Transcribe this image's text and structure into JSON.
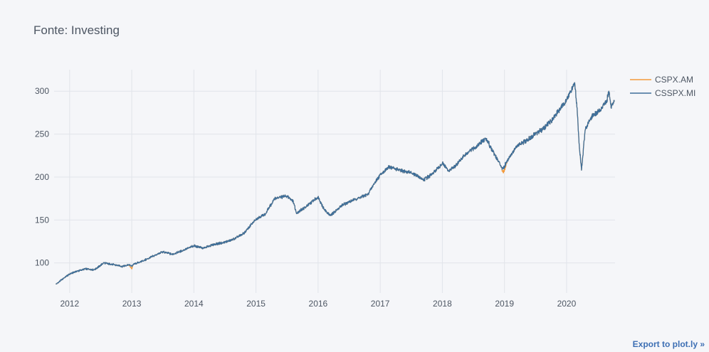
{
  "chart_data": {
    "type": "line",
    "title": "Fonte: Investing",
    "xlabel": "",
    "ylabel": "",
    "xlim": [
      2011.75,
      2020.78
    ],
    "ylim": [
      65,
      325
    ],
    "x_ticks": [
      2012,
      2013,
      2014,
      2015,
      2016,
      2017,
      2018,
      2019,
      2020
    ],
    "x_tick_labels": [
      "2012",
      "2013",
      "2014",
      "2015",
      "2016",
      "2017",
      "2018",
      "2019",
      "2020"
    ],
    "y_ticks": [
      100,
      150,
      200,
      250,
      300
    ],
    "y_tick_labels": [
      "100",
      "150",
      "200",
      "250",
      "300"
    ],
    "grid": true,
    "legend_position": "top-right",
    "series": [
      {
        "name": "CSPX.AM",
        "color": "#f39a3b",
        "x": [
          2011.78,
          2011.9,
          2012.0,
          2012.1,
          2012.25,
          2012.4,
          2012.55,
          2012.7,
          2012.85,
          2012.95,
          2013.0,
          2013.02,
          2013.2,
          2013.35,
          2013.5,
          2013.65,
          2013.8,
          2014.0,
          2014.15,
          2014.3,
          2014.5,
          2014.65,
          2014.8,
          2015.0,
          2015.15,
          2015.3,
          2015.5,
          2015.6,
          2015.65,
          2015.8,
          2016.0,
          2016.1,
          2016.2,
          2016.4,
          2016.6,
          2016.8,
          2016.9,
          2017.0,
          2017.15,
          2017.3,
          2017.5,
          2017.7,
          2017.85,
          2018.0,
          2018.1,
          2018.2,
          2018.35,
          2018.5,
          2018.7,
          2018.8,
          2018.95,
          2018.98,
          2019.05,
          2019.2,
          2019.35,
          2019.5,
          2019.6,
          2019.75,
          2019.9,
          2020.0,
          2020.13,
          2020.17,
          2020.2,
          2020.24,
          2020.3,
          2020.4,
          2020.55,
          2020.65,
          2020.68,
          2020.72,
          2020.77
        ],
        "values": [
          75,
          82,
          87,
          90,
          93,
          92,
          100,
          98,
          96,
          98,
          93,
          98,
          103,
          108,
          113,
          110,
          114,
          120,
          117,
          121,
          124,
          128,
          134,
          151,
          157,
          175,
          178,
          172,
          158,
          165,
          177,
          162,
          155,
          168,
          174,
          180,
          192,
          203,
          212,
          208,
          205,
          197,
          204,
          216,
          207,
          212,
          225,
          233,
          245,
          232,
          212,
          205,
          220,
          236,
          242,
          250,
          255,
          265,
          280,
          290,
          310,
          280,
          240,
          208,
          255,
          270,
          278,
          290,
          300,
          280,
          288
        ]
      },
      {
        "name": "CSSPX.MI",
        "color": "#3e6f9b",
        "x": [
          2011.78,
          2011.9,
          2012.0,
          2012.1,
          2012.25,
          2012.4,
          2012.55,
          2012.7,
          2012.85,
          2012.95,
          2013.0,
          2013.02,
          2013.2,
          2013.35,
          2013.5,
          2013.65,
          2013.8,
          2014.0,
          2014.15,
          2014.3,
          2014.5,
          2014.65,
          2014.8,
          2015.0,
          2015.15,
          2015.3,
          2015.5,
          2015.6,
          2015.65,
          2015.8,
          2016.0,
          2016.1,
          2016.2,
          2016.4,
          2016.6,
          2016.8,
          2016.9,
          2017.0,
          2017.15,
          2017.3,
          2017.5,
          2017.7,
          2017.85,
          2018.0,
          2018.1,
          2018.2,
          2018.35,
          2018.5,
          2018.7,
          2018.8,
          2018.95,
          2018.98,
          2019.05,
          2019.2,
          2019.35,
          2019.5,
          2019.6,
          2019.75,
          2019.9,
          2020.0,
          2020.13,
          2020.17,
          2020.2,
          2020.24,
          2020.3,
          2020.4,
          2020.55,
          2020.65,
          2020.68,
          2020.72,
          2020.77
        ],
        "values": [
          75,
          82,
          87,
          90,
          93,
          92,
          100,
          98,
          96,
          98,
          96,
          98,
          103,
          108,
          113,
          110,
          114,
          120,
          117,
          121,
          124,
          128,
          134,
          151,
          157,
          175,
          178,
          172,
          158,
          165,
          177,
          162,
          155,
          168,
          174,
          180,
          192,
          203,
          212,
          208,
          205,
          197,
          204,
          216,
          207,
          212,
          225,
          233,
          245,
          232,
          212,
          210,
          220,
          236,
          242,
          250,
          255,
          265,
          280,
          290,
          310,
          280,
          240,
          208,
          255,
          270,
          278,
          290,
          300,
          280,
          288
        ]
      }
    ]
  },
  "footer": {
    "export_label": "Export to plot.ly »"
  }
}
